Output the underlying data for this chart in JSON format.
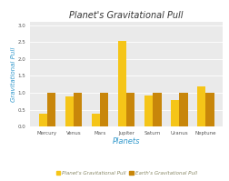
{
  "title": "Planet's Gravitational Pull",
  "xlabel": "Planets",
  "ylabel": "Gravitational Pull",
  "planets": [
    "Mercury",
    "Venus",
    "Mars",
    "Jupiter",
    "Saturn",
    "Uranus",
    "Neptune"
  ],
  "planet_pull": [
    0.38,
    0.9,
    0.38,
    2.53,
    0.92,
    0.79,
    1.19
  ],
  "earth_pull": [
    1.0,
    1.0,
    1.0,
    1.0,
    1.0,
    1.0,
    1.0
  ],
  "bar_color_planet": "#f5c518",
  "bar_color_earth": "#c8860a",
  "legend_label_planet": "Planet's Gravitational Pull",
  "legend_label_earth": "Earth's Gravitational Pull",
  "ylim": [
    0,
    3.1
  ],
  "yticks": [
    0,
    0.5,
    1.0,
    1.5,
    2.0,
    2.5,
    3.0
  ],
  "plot_bg_color": "#eaeaea",
  "fig_bg_color": "#ffffff",
  "title_color": "#333333",
  "xlabel_color": "#3399cc",
  "ylabel_color": "#3399cc",
  "tick_label_color": "#555555",
  "grid_color": "#ffffff",
  "bar_width": 0.32,
  "title_fontsize": 7,
  "xlabel_fontsize": 6,
  "ylabel_fontsize": 5,
  "tick_fontsize": 4,
  "legend_fontsize": 4
}
